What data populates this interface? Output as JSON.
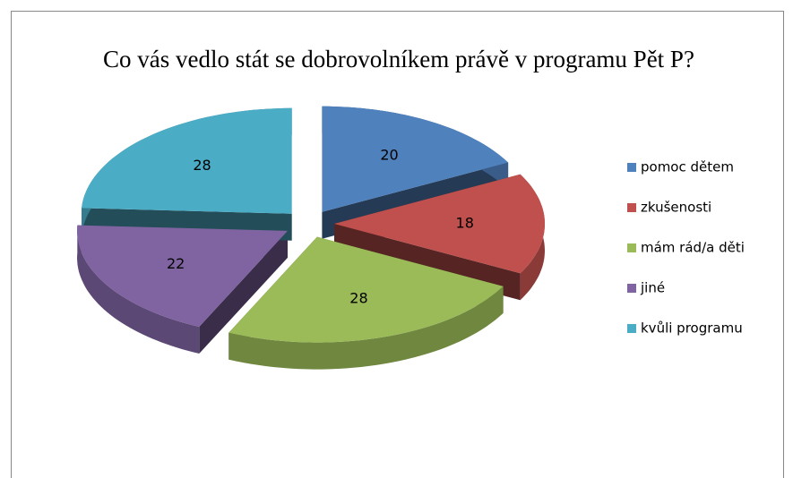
{
  "chart_data": {
    "type": "pie",
    "title": "Co vás vedlo stát se dobrovolníkem právě v programu Pět P?",
    "categories": [
      "pomoc dětem",
      "zkušenosti",
      "mám rád/a děti",
      "jiné",
      "kvůli programu"
    ],
    "values": [
      20,
      18,
      28,
      22,
      28
    ],
    "colors": [
      "#4f81bd",
      "#c0504d",
      "#9bbb59",
      "#8064a2",
      "#4bacc6"
    ],
    "legend": "right"
  }
}
